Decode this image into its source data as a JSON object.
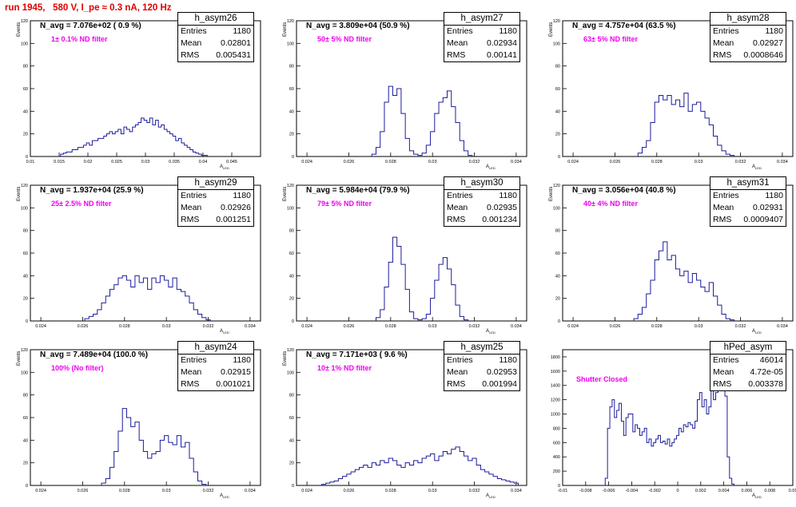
{
  "header": {
    "title": "run 1945,   580 V, I_pe ≈ 0.3 nA, 120 Hz"
  },
  "colors": {
    "histogram": "#1c1c9c",
    "title": "#e00000",
    "filter": "#ee00ee",
    "frame": "#000000"
  },
  "chart_data": [
    {
      "type": "histogram",
      "name": "h_asym26",
      "title": "N_avg = 7.076e+02 ( 0.9 %)",
      "annotation": "1± 0.1% ND filter",
      "xlabel": "A_LED",
      "ylabel": "Events",
      "xlim": [
        0.01,
        0.05
      ],
      "ylim": [
        0,
        120
      ],
      "xticks": [
        "0.01",
        "0.015",
        "0.02",
        "0.025",
        "0.03",
        "0.035",
        "0.04",
        "0.045"
      ],
      "xtick_values": [
        0.01,
        0.015,
        0.02,
        0.025,
        0.03,
        0.035,
        0.04,
        0.045
      ],
      "yticks": [
        "0",
        "20",
        "40",
        "60",
        "80",
        "100",
        "120"
      ],
      "yticks_values": [
        0,
        20,
        40,
        60,
        80,
        100,
        120
      ],
      "stats": {
        "entries": "1180",
        "mean": "0.02801",
        "rms": "0.005431"
      },
      "x": [
        0.0155,
        0.016,
        0.0165,
        0.017,
        0.0175,
        0.018,
        0.0185,
        0.019,
        0.0195,
        0.02,
        0.0205,
        0.021,
        0.0215,
        0.022,
        0.0225,
        0.023,
        0.0235,
        0.024,
        0.0245,
        0.025,
        0.0255,
        0.026,
        0.0265,
        0.027,
        0.0275,
        0.028,
        0.0285,
        0.029,
        0.0295,
        0.03,
        0.0305,
        0.031,
        0.0315,
        0.032,
        0.0325,
        0.033,
        0.0335,
        0.034,
        0.0345,
        0.035,
        0.0355,
        0.036,
        0.0365,
        0.037,
        0.0375,
        0.038,
        0.0385,
        0.039,
        0.0395,
        0.04,
        0.0405
      ],
      "y": [
        2,
        3,
        4,
        4,
        6,
        6,
        8,
        8,
        10,
        12,
        10,
        14,
        14,
        16,
        16,
        18,
        20,
        22,
        20,
        22,
        24,
        20,
        26,
        24,
        22,
        26,
        28,
        30,
        34,
        32,
        30,
        34,
        28,
        32,
        26,
        28,
        24,
        22,
        20,
        18,
        14,
        16,
        12,
        10,
        8,
        6,
        4,
        3,
        2,
        1,
        1
      ]
    },
    {
      "type": "histogram",
      "name": "h_asym27",
      "title": "N_avg = 3.809e+04 (50.9 %)",
      "annotation": "50± 5% ND filter",
      "xlabel": "A_LED",
      "ylabel": "Events",
      "xlim": [
        0.0235,
        0.0345
      ],
      "ylim": [
        0,
        120
      ],
      "xticks": [
        "0.024",
        "0.026",
        "0.028",
        "0.03",
        "0.032",
        "0.034"
      ],
      "xtick_values": [
        0.024,
        0.026,
        0.028,
        0.03,
        0.032,
        0.034
      ],
      "yticks": [
        "0",
        "20",
        "40",
        "60",
        "80",
        "100",
        "120"
      ],
      "yticks_values": [
        0,
        20,
        40,
        60,
        80,
        100,
        120
      ],
      "stats": {
        "entries": "1180",
        "mean": "0.02934",
        "rms": "0.00141"
      },
      "x": [
        0.0272,
        0.0274,
        0.0276,
        0.0278,
        0.028,
        0.0282,
        0.0284,
        0.0286,
        0.0288,
        0.029,
        0.0292,
        0.0294,
        0.0296,
        0.0298,
        0.03,
        0.0302,
        0.0304,
        0.0306,
        0.0308,
        0.031,
        0.0312,
        0.0314,
        0.0316,
        0.0318
      ],
      "y": [
        2,
        8,
        22,
        48,
        62,
        54,
        60,
        38,
        16,
        5,
        2,
        1,
        3,
        10,
        22,
        38,
        48,
        52,
        58,
        44,
        30,
        14,
        5,
        1
      ]
    },
    {
      "type": "histogram",
      "name": "h_asym28",
      "title": "N_avg = 4.757e+04 (63.5 %)",
      "annotation": "63± 5% ND filter",
      "xlabel": "A_LED",
      "ylabel": "Events",
      "xlim": [
        0.0235,
        0.0345
      ],
      "ylim": [
        0,
        120
      ],
      "xticks": [
        "0.024",
        "0.026",
        "0.028",
        "0.03",
        "0.032",
        "0.034"
      ],
      "xtick_values": [
        0.024,
        0.026,
        0.028,
        0.03,
        0.032,
        0.034
      ],
      "yticks": [
        "0",
        "20",
        "40",
        "60",
        "80",
        "100",
        "120"
      ],
      "yticks_values": [
        0,
        20,
        40,
        60,
        80,
        100,
        120
      ],
      "stats": {
        "entries": "1180",
        "mean": "0.02927",
        "rms": "0.0008646"
      },
      "x": [
        0.0272,
        0.0274,
        0.0276,
        0.0278,
        0.028,
        0.0282,
        0.0284,
        0.0286,
        0.0288,
        0.029,
        0.0292,
        0.0294,
        0.0296,
        0.0298,
        0.03,
        0.0302,
        0.0304,
        0.0306,
        0.0308,
        0.031,
        0.0312,
        0.0314,
        0.0316
      ],
      "y": [
        3,
        8,
        14,
        30,
        48,
        54,
        50,
        54,
        46,
        50,
        44,
        56,
        40,
        46,
        48,
        40,
        34,
        28,
        18,
        10,
        5,
        2,
        1
      ]
    },
    {
      "type": "histogram",
      "name": "h_asym29",
      "title": "N_avg = 1.937e+04 (25.9 %)",
      "annotation": "25± 2.5% ND filter",
      "xlabel": "A_LED",
      "ylabel": "Events",
      "xlim": [
        0.0235,
        0.0345
      ],
      "ylim": [
        0,
        120
      ],
      "xticks": [
        "0.024",
        "0.026",
        "0.028",
        "0.03",
        "0.032",
        "0.034"
      ],
      "xtick_values": [
        0.024,
        0.026,
        0.028,
        0.03,
        0.032,
        0.034
      ],
      "yticks": [
        "0",
        "20",
        "40",
        "60",
        "80",
        "100",
        "120"
      ],
      "yticks_values": [
        0,
        20,
        40,
        60,
        80,
        100,
        120
      ],
      "stats": {
        "entries": "1180",
        "mean": "0.02926",
        "rms": "0.001251"
      },
      "x": [
        0.0262,
        0.0264,
        0.0266,
        0.0268,
        0.027,
        0.0272,
        0.0274,
        0.0276,
        0.0278,
        0.028,
        0.0282,
        0.0284,
        0.0286,
        0.0288,
        0.029,
        0.0292,
        0.0294,
        0.0296,
        0.0298,
        0.03,
        0.0302,
        0.0304,
        0.0306,
        0.0308,
        0.031,
        0.0312,
        0.0314,
        0.0316,
        0.0318,
        0.032
      ],
      "y": [
        2,
        4,
        6,
        10,
        16,
        22,
        28,
        32,
        38,
        40,
        36,
        30,
        40,
        34,
        38,
        28,
        38,
        34,
        40,
        36,
        30,
        38,
        28,
        26,
        22,
        16,
        10,
        6,
        3,
        1
      ]
    },
    {
      "type": "histogram",
      "name": "h_asym30",
      "title": "N_avg = 5.984e+04 (79.9 %)",
      "annotation": "79± 5% ND filter",
      "xlabel": "A_LED",
      "ylabel": "Events",
      "xlim": [
        0.0235,
        0.0345
      ],
      "ylim": [
        0,
        120
      ],
      "xticks": [
        "0.024",
        "0.026",
        "0.028",
        "0.03",
        "0.032",
        "0.034"
      ],
      "xtick_values": [
        0.024,
        0.026,
        0.028,
        0.03,
        0.032,
        0.034
      ],
      "yticks": [
        "0",
        "20",
        "40",
        "60",
        "80",
        "100",
        "120"
      ],
      "yticks_values": [
        0,
        20,
        40,
        60,
        80,
        100,
        120
      ],
      "stats": {
        "entries": "1180",
        "mean": "0.02935",
        "rms": "0.001234"
      },
      "x": [
        0.0274,
        0.0276,
        0.0278,
        0.028,
        0.0282,
        0.0284,
        0.0286,
        0.0288,
        0.029,
        0.0292,
        0.0294,
        0.0296,
        0.0298,
        0.03,
        0.0302,
        0.0304,
        0.0306,
        0.0308,
        0.031,
        0.0312,
        0.0314,
        0.0316
      ],
      "y": [
        3,
        10,
        30,
        52,
        74,
        66,
        50,
        28,
        8,
        2,
        1,
        2,
        6,
        20,
        36,
        50,
        56,
        46,
        32,
        14,
        4,
        1
      ]
    },
    {
      "type": "histogram",
      "name": "h_asym31",
      "title": "N_avg = 3.056e+04 (40.8 %)",
      "annotation": "40± 4% ND filter",
      "xlabel": "A_LED",
      "ylabel": "Events",
      "xlim": [
        0.0235,
        0.0345
      ],
      "ylim": [
        0,
        120
      ],
      "xticks": [
        "0.024",
        "0.026",
        "0.028",
        "0.03",
        "0.032",
        "0.034"
      ],
      "xtick_values": [
        0.024,
        0.026,
        0.028,
        0.03,
        0.032,
        0.034
      ],
      "yticks": [
        "0",
        "20",
        "40",
        "60",
        "80",
        "100",
        "120"
      ],
      "yticks_values": [
        0,
        20,
        40,
        60,
        80,
        100,
        120
      ],
      "stats": {
        "entries": "1180",
        "mean": "0.02931",
        "rms": "0.0009407"
      },
      "x": [
        0.027,
        0.0272,
        0.0274,
        0.0276,
        0.0278,
        0.028,
        0.0282,
        0.0284,
        0.0286,
        0.0288,
        0.029,
        0.0292,
        0.0294,
        0.0296,
        0.0298,
        0.03,
        0.0302,
        0.0304,
        0.0306,
        0.0308,
        0.031,
        0.0312,
        0.0314,
        0.0316
      ],
      "y": [
        2,
        6,
        12,
        24,
        36,
        54,
        62,
        70,
        54,
        58,
        46,
        40,
        44,
        34,
        42,
        36,
        30,
        26,
        34,
        22,
        14,
        6,
        2,
        1
      ]
    },
    {
      "type": "histogram",
      "name": "h_asym24",
      "title": "N_avg = 7.489e+04 (100.0 %)",
      "annotation": "100% (No filter)",
      "xlabel": "A_LED",
      "ylabel": "Events",
      "xlim": [
        0.0235,
        0.0345
      ],
      "ylim": [
        0,
        120
      ],
      "xticks": [
        "0.024",
        "0.026",
        "0.028",
        "0.03",
        "0.032",
        "0.034"
      ],
      "xtick_values": [
        0.024,
        0.026,
        0.028,
        0.03,
        0.032,
        0.034
      ],
      "yticks": [
        "0",
        "20",
        "40",
        "60",
        "80",
        "100",
        "120"
      ],
      "yticks_values": [
        0,
        20,
        40,
        60,
        80,
        100,
        120
      ],
      "stats": {
        "entries": "1180",
        "mean": "0.02915",
        "rms": "0.001021"
      },
      "x": [
        0.027,
        0.0272,
        0.0274,
        0.0276,
        0.0278,
        0.028,
        0.0282,
        0.0284,
        0.0286,
        0.0288,
        0.029,
        0.0292,
        0.0294,
        0.0296,
        0.0298,
        0.03,
        0.0302,
        0.0304,
        0.0306,
        0.0308,
        0.031,
        0.0312,
        0.0314,
        0.0316,
        0.0318
      ],
      "y": [
        2,
        6,
        16,
        30,
        48,
        68,
        60,
        52,
        56,
        40,
        30,
        24,
        28,
        30,
        40,
        44,
        38,
        36,
        44,
        34,
        38,
        24,
        12,
        4,
        1
      ]
    },
    {
      "type": "histogram",
      "name": "h_asym25",
      "title": "N_avg = 7.171e+03 ( 9.6 %)",
      "annotation": "10± 1% ND filter",
      "xlabel": "A_LED",
      "ylabel": "Events",
      "xlim": [
        0.0235,
        0.0345
      ],
      "ylim": [
        0,
        120
      ],
      "xticks": [
        "0.024",
        "0.026",
        "0.028",
        "0.03",
        "0.032",
        "0.034"
      ],
      "xtick_values": [
        0.024,
        0.026,
        0.028,
        0.03,
        0.032,
        0.034
      ],
      "yticks": [
        "0",
        "20",
        "40",
        "60",
        "80",
        "100",
        "120"
      ],
      "yticks_values": [
        0,
        20,
        40,
        60,
        80,
        100,
        120
      ],
      "stats": {
        "entries": "1180",
        "mean": "0.02953",
        "rms": "0.001994"
      },
      "x": [
        0.0248,
        0.025,
        0.0252,
        0.0254,
        0.0256,
        0.0258,
        0.026,
        0.0262,
        0.0264,
        0.0266,
        0.0268,
        0.027,
        0.0272,
        0.0274,
        0.0276,
        0.0278,
        0.028,
        0.0282,
        0.0284,
        0.0286,
        0.0288,
        0.029,
        0.0292,
        0.0294,
        0.0296,
        0.0298,
        0.03,
        0.0302,
        0.0304,
        0.0306,
        0.0308,
        0.031,
        0.0312,
        0.0314,
        0.0316,
        0.0318,
        0.032,
        0.0322,
        0.0324,
        0.0326,
        0.0328,
        0.033,
        0.0332,
        0.0334,
        0.0336,
        0.0338,
        0.034
      ],
      "y": [
        1,
        2,
        3,
        4,
        6,
        8,
        10,
        12,
        14,
        16,
        18,
        16,
        20,
        18,
        22,
        20,
        24,
        22,
        18,
        16,
        20,
        18,
        22,
        20,
        24,
        26,
        28,
        22,
        26,
        30,
        28,
        32,
        34,
        30,
        26,
        22,
        24,
        18,
        14,
        12,
        10,
        8,
        6,
        5,
        4,
        3,
        2
      ]
    },
    {
      "type": "histogram",
      "name": "hPed_asym",
      "title": "",
      "annotation": "Shutter Closed",
      "xlabel": "A_LED",
      "ylabel": "",
      "xlim": [
        -0.01,
        0.01
      ],
      "ylim": [
        0,
        1900
      ],
      "xticks": [
        "-0.01",
        "-0.008",
        "-0.006",
        "-0.004",
        "-0.002",
        "0",
        "0.002",
        "0.004",
        "0.006",
        "0.008",
        "0.01"
      ],
      "xtick_values": [
        -0.01,
        -0.008,
        -0.006,
        -0.004,
        -0.002,
        0,
        0.002,
        0.004,
        0.006,
        0.008,
        0.01
      ],
      "yticks": [
        "0",
        "200",
        "400",
        "600",
        "800",
        "1000",
        "1200",
        "1400",
        "1600",
        "1800"
      ],
      "yticks_values": [
        0,
        200,
        400,
        600,
        800,
        1000,
        1200,
        1400,
        1600,
        1800
      ],
      "stats": {
        "entries": "46014",
        "mean": "4.72e-05",
        "rms": "0.003378"
      },
      "x": [
        -0.0062,
        -0.006,
        -0.0058,
        -0.0056,
        -0.0054,
        -0.0052,
        -0.005,
        -0.0048,
        -0.0046,
        -0.0044,
        -0.0042,
        -0.004,
        -0.0038,
        -0.0036,
        -0.0034,
        -0.0032,
        -0.003,
        -0.0028,
        -0.0026,
        -0.0024,
        -0.0022,
        -0.002,
        -0.0018,
        -0.0016,
        -0.0014,
        -0.0012,
        -0.001,
        -0.0008,
        -0.0006,
        -0.0004,
        -0.0002,
        0,
        0.0002,
        0.0004,
        0.0006,
        0.0008,
        0.001,
        0.0012,
        0.0014,
        0.0016,
        0.0018,
        0.002,
        0.0022,
        0.0024,
        0.0026,
        0.0028,
        0.003,
        0.0032,
        0.0034,
        0.0036,
        0.0038,
        0.004,
        0.0042,
        0.0044,
        0.0046,
        0.0048
      ],
      "y": [
        100,
        800,
        1100,
        1200,
        950,
        1050,
        1150,
        900,
        700,
        950,
        1000,
        1000,
        750,
        850,
        800,
        700,
        750,
        800,
        600,
        650,
        550,
        600,
        650,
        700,
        600,
        620,
        580,
        650,
        550,
        600,
        650,
        700,
        800,
        750,
        850,
        820,
        880,
        850,
        800,
        900,
        1200,
        1300,
        1100,
        1200,
        1000,
        1100,
        1400,
        1200,
        1300,
        1600,
        1800,
        1700,
        1250,
        400,
        100,
        20
      ]
    }
  ]
}
